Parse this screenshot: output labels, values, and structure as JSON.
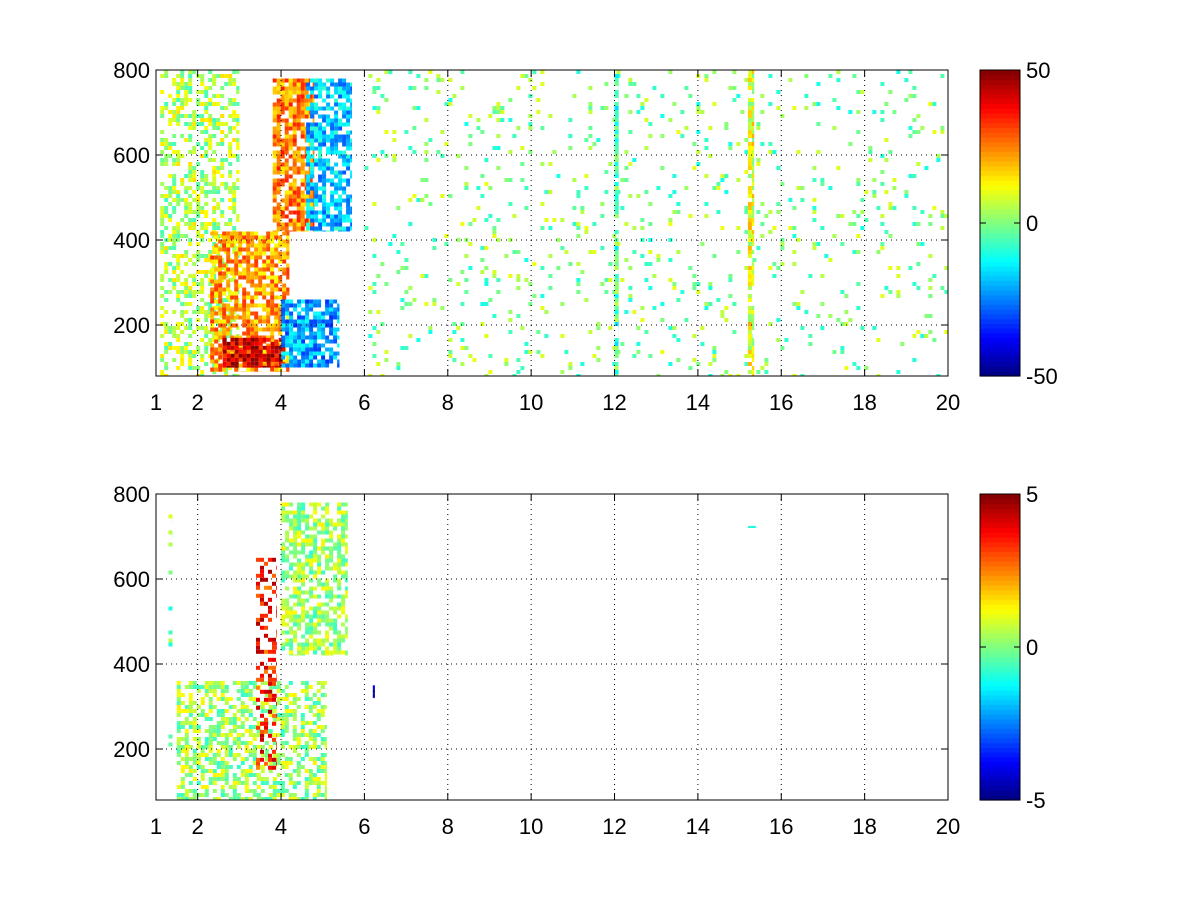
{
  "chart_data": [
    {
      "type": "heatmap",
      "title": "",
      "xlabel": "",
      "ylabel": "",
      "xlim": [
        1,
        20
      ],
      "ylim": [
        80,
        800
      ],
      "xticks": [
        1,
        2,
        4,
        6,
        8,
        10,
        12,
        14,
        16,
        18,
        20
      ],
      "yticks": [
        200,
        400,
        600,
        800
      ],
      "grid": true,
      "colorbar": {
        "clim": [
          -50,
          50
        ],
        "ticks": [
          50,
          0,
          -50
        ],
        "colormap": "jet"
      },
      "features": [
        {
          "name": "low-frequency band",
          "x": [
            1.1,
            3.0
          ],
          "y": [
            80,
            800
          ],
          "value": 5,
          "density": 0.45
        },
        {
          "name": "warm arc lower",
          "x": [
            2.3,
            4.2
          ],
          "y": [
            90,
            420
          ],
          "value": 22,
          "density": 0.75
        },
        {
          "name": "hot core",
          "x": [
            2.6,
            4.1
          ],
          "y": [
            100,
            170
          ],
          "value": 42,
          "density": 0.9
        },
        {
          "name": "warm arc upper",
          "x": [
            3.8,
            4.8
          ],
          "y": [
            420,
            780
          ],
          "value": 25,
          "density": 0.75
        },
        {
          "name": "cool patch upper",
          "x": [
            4.6,
            5.7
          ],
          "y": [
            420,
            780
          ],
          "value": -18,
          "density": 0.7
        },
        {
          "name": "cool patch lower",
          "x": [
            4.0,
            5.4
          ],
          "y": [
            100,
            260
          ],
          "value": -22,
          "density": 0.75
        },
        {
          "name": "sparse columns",
          "x": [
            6.0,
            20.0
          ],
          "y": [
            80,
            800
          ],
          "value": 0,
          "density": 0.07
        },
        {
          "name": "stripe",
          "x": [
            12.0,
            12.1
          ],
          "y": [
            80,
            800
          ],
          "value": -5,
          "density": 0.85
        },
        {
          "name": "stripe",
          "x": [
            15.2,
            15.35
          ],
          "y": [
            80,
            800
          ],
          "value": 10,
          "density": 0.85
        }
      ]
    },
    {
      "type": "heatmap",
      "title": "",
      "xlabel": "",
      "ylabel": "",
      "xlim": [
        1,
        20
      ],
      "ylim": [
        80,
        800
      ],
      "xticks": [
        1,
        2,
        4,
        6,
        8,
        10,
        12,
        14,
        16,
        18,
        20
      ],
      "yticks": [
        200,
        400,
        600,
        800
      ],
      "grid": true,
      "colorbar": {
        "clim": [
          -5,
          5
        ],
        "ticks": [
          5,
          0,
          -5
        ],
        "colormap": "jet"
      },
      "features": [
        {
          "name": "green region lower",
          "x": [
            1.5,
            5.1
          ],
          "y": [
            80,
            360
          ],
          "value": 0.3,
          "density": 0.55
        },
        {
          "name": "green region upper",
          "x": [
            4.0,
            5.6
          ],
          "y": [
            420,
            780
          ],
          "value": 0.3,
          "density": 0.6
        },
        {
          "name": "red spike",
          "x": [
            3.4,
            3.9
          ],
          "y": [
            150,
            650
          ],
          "value": 3.5,
          "density": 0.35
        },
        {
          "name": "blue mark",
          "x": [
            6.2,
            6.25
          ],
          "y": [
            320,
            350
          ],
          "value": -5,
          "density": 1.0
        },
        {
          "name": "edge marks",
          "x": [
            1.3,
            1.4
          ],
          "y": [
            150,
            780
          ],
          "value": 0,
          "density": 0.15
        },
        {
          "name": "isolated dash",
          "x": [
            15.2,
            15.4
          ],
          "y": [
            720,
            725
          ],
          "value": 0,
          "density": 1.0
        }
      ]
    }
  ]
}
